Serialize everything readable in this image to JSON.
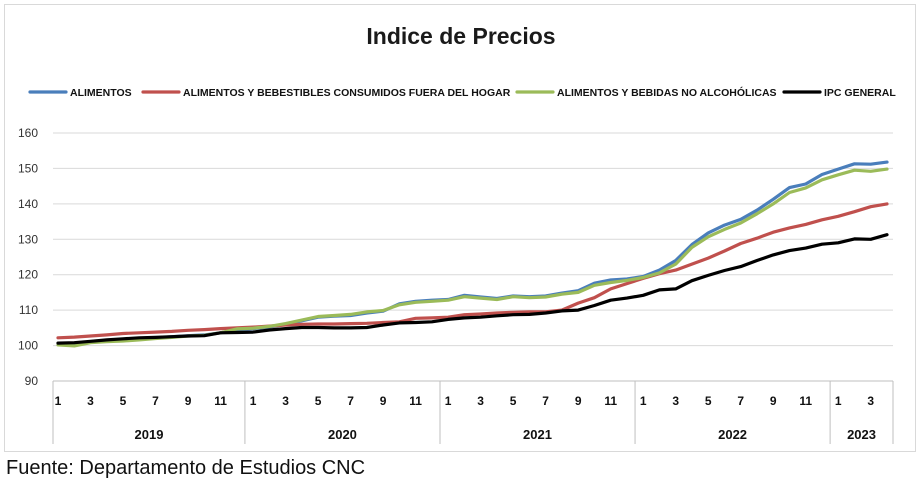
{
  "chart_data": {
    "type": "line",
    "title": "Indice de Precios",
    "xlabel": "",
    "ylabel": "",
    "ylim": [
      90,
      160
    ],
    "yticks": [
      90,
      100,
      110,
      120,
      130,
      140,
      150,
      160
    ],
    "grid": "horizontal",
    "legend": "top",
    "month_ticks": [
      "1",
      "3",
      "5",
      "7",
      "9",
      "11",
      "1",
      "3",
      "5",
      "7",
      "9",
      "11",
      "1",
      "3",
      "5",
      "7",
      "9",
      "11",
      "1",
      "3",
      "5",
      "7",
      "9",
      "11",
      "1",
      "3"
    ],
    "years": [
      "2019",
      "2020",
      "2021",
      "2022",
      "2023"
    ],
    "series": [
      {
        "name": "ALIMENTOS",
        "color": "#4a7ebb",
        "values": [
          100.5,
          100.2,
          101.0,
          101.3,
          101.5,
          101.8,
          102.2,
          102.5,
          102.8,
          103.0,
          103.6,
          104.5,
          104.8,
          105.2,
          106.0,
          107.0,
          108.0,
          108.3,
          108.5,
          109.2,
          109.7,
          111.8,
          112.5,
          112.8,
          113.0,
          114.2,
          113.7,
          113.3,
          114.0,
          113.8,
          114.0,
          114.8,
          115.5,
          117.6,
          118.5,
          118.8,
          119.5,
          121.3,
          124.0,
          128.5,
          131.8,
          134.0,
          135.6,
          138.2,
          141.3,
          144.6,
          145.6,
          148.3,
          149.8,
          151.3,
          151.2,
          151.8
        ]
      },
      {
        "name": "ALIMENTOS Y BEBESTIBLES CONSUMIDOS FUERA DEL HOGAR",
        "color": "#c0504d",
        "values": [
          102.2,
          102.4,
          102.7,
          103.0,
          103.4,
          103.6,
          103.8,
          104.0,
          104.3,
          104.5,
          104.8,
          105.0,
          105.2,
          105.5,
          105.8,
          106.0,
          106.1,
          106.1,
          106.2,
          106.3,
          106.5,
          106.7,
          107.7,
          107.8,
          108.0,
          108.7,
          108.9,
          109.2,
          109.4,
          109.5,
          109.5,
          110.0,
          112.0,
          113.5,
          116.0,
          117.5,
          119.0,
          120.3,
          121.3,
          123.0,
          124.7,
          126.7,
          128.8,
          130.3,
          132.0,
          133.2,
          134.2,
          135.5,
          136.5,
          137.8,
          139.2,
          140.0
        ]
      },
      {
        "name": "ALIMENTOS Y BEBIDAS NO ALCOHÓLICAS",
        "color": "#9bbb59",
        "values": [
          100.2,
          99.9,
          100.8,
          101.1,
          101.3,
          101.6,
          102.0,
          102.3,
          102.7,
          102.9,
          103.6,
          104.7,
          104.9,
          105.4,
          106.2,
          107.2,
          108.2,
          108.5,
          108.8,
          109.5,
          109.9,
          111.5,
          112.2,
          112.5,
          112.8,
          113.8,
          113.4,
          113.0,
          113.8,
          113.5,
          113.7,
          114.5,
          115.0,
          117.0,
          117.8,
          118.4,
          119.2,
          120.5,
          123.0,
          127.7,
          130.7,
          132.8,
          134.6,
          137.2,
          140.0,
          143.2,
          144.5,
          146.8,
          148.2,
          149.5,
          149.2,
          149.8
        ]
      },
      {
        "name": "IPC GENERAL",
        "color": "#000000",
        "values": [
          100.7,
          100.8,
          101.2,
          101.6,
          101.9,
          102.2,
          102.3,
          102.5,
          102.7,
          102.8,
          103.6,
          103.7,
          103.8,
          104.4,
          104.8,
          105.1,
          105.1,
          105.0,
          105.0,
          105.1,
          105.8,
          106.4,
          106.5,
          106.7,
          107.4,
          107.8,
          108.0,
          108.4,
          108.7,
          108.8,
          109.2,
          109.8,
          110.0,
          111.3,
          112.8,
          113.4,
          114.2,
          115.7,
          116.0,
          118.3,
          119.8,
          121.2,
          122.3,
          124.0,
          125.6,
          126.8,
          127.5,
          128.6,
          129.0,
          130.1,
          130.0,
          131.3
        ]
      }
    ]
  },
  "footer": {
    "source": "Fuente: Departamento de Estudios CNC"
  }
}
